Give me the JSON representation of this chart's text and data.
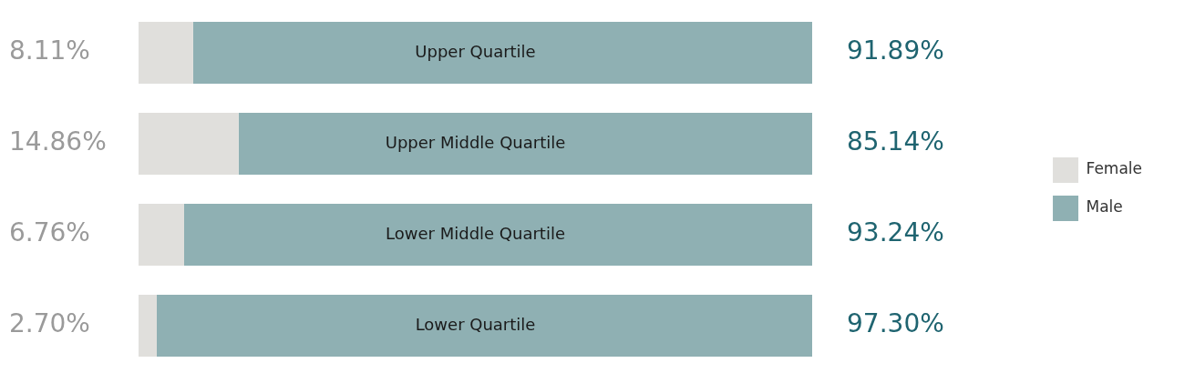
{
  "chart_data": {
    "type": "bar",
    "orientation": "horizontal",
    "stacked": true,
    "categories": [
      "Upper Quartile",
      "Upper Middle Quartile",
      "Lower Middle Quartile",
      "Lower Quartile"
    ],
    "xlim": [
      0,
      100
    ],
    "series": [
      {
        "name": "Female",
        "color": "#e0dfdc",
        "values": [
          8.11,
          14.86,
          6.76,
          2.7
        ],
        "value_labels": [
          "8.11%",
          "14.86%",
          "6.76%",
          "2.70%"
        ]
      },
      {
        "name": "Male",
        "color": "#8fb0b3",
        "values": [
          91.89,
          85.14,
          93.24,
          97.3
        ],
        "value_labels": [
          "91.89%",
          "85.14%",
          "93.24%",
          "97.30%"
        ]
      }
    ],
    "legend": "right"
  }
}
